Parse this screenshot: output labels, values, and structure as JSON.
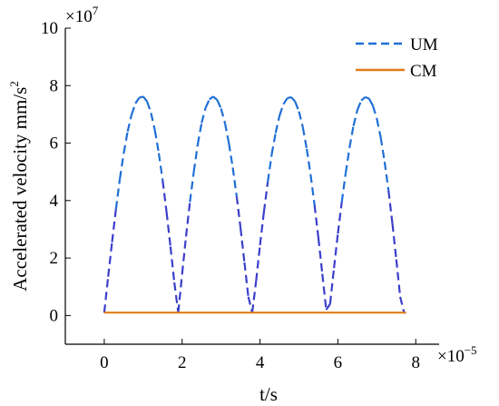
{
  "chart_data": {
    "type": "line",
    "xlabel": "t/s",
    "ylabel": "Accelerated velocity  mm/s",
    "ylabel_exponent": "2",
    "x_multiplier": {
      "base": "×10",
      "exponent": "−5"
    },
    "y_multiplier": {
      "base": "×10",
      "exponent": "7"
    },
    "xlim": [
      -1,
      8.6
    ],
    "ylim": [
      -1,
      10
    ],
    "xticks": [
      0,
      2,
      4,
      6,
      8
    ],
    "yticks": [
      0,
      2,
      4,
      6,
      8,
      10
    ],
    "grid": false,
    "legend_position": "top-right",
    "series": [
      {
        "name": "UM",
        "style": "dashed",
        "color": "#1f6fd6",
        "color_low": "#3b3fc9",
        "x": [
          0,
          0.1,
          0.2,
          0.3,
          0.4,
          0.5,
          0.6,
          0.7,
          0.8,
          0.9,
          1.0,
          1.1,
          1.2,
          1.3,
          1.4,
          1.5,
          1.6,
          1.7,
          1.8,
          1.9,
          2.0,
          2.1,
          2.2,
          2.3,
          2.4,
          2.5,
          2.6,
          2.7,
          2.8,
          2.9,
          3.0,
          3.1,
          3.2,
          3.3,
          3.4,
          3.5,
          3.6,
          3.7,
          3.8,
          3.9,
          4.0,
          4.1,
          4.2,
          4.3,
          4.4,
          4.5,
          4.6,
          4.7,
          4.8,
          4.9,
          5.0,
          5.1,
          5.2,
          5.3,
          5.4,
          5.5,
          5.6,
          5.7,
          5.8,
          5.9,
          6.0,
          6.1,
          6.2,
          6.3,
          6.4,
          6.5,
          6.6,
          6.7,
          6.8,
          6.9,
          7.0,
          7.1,
          7.2,
          7.3,
          7.4,
          7.5,
          7.6,
          7.7,
          7.75
        ],
        "y": [
          0.1,
          1.35,
          2.55,
          3.7,
          4.75,
          5.65,
          6.4,
          6.98,
          7.38,
          7.58,
          7.62,
          7.45,
          7.05,
          6.45,
          5.65,
          4.7,
          3.6,
          2.4,
          1.15,
          0.1,
          1.45,
          2.75,
          3.95,
          5.0,
          5.95,
          6.7,
          7.22,
          7.52,
          7.62,
          7.5,
          7.2,
          6.7,
          6.0,
          5.15,
          4.15,
          3.05,
          1.85,
          0.65,
          0.1,
          1.2,
          2.45,
          3.6,
          4.65,
          5.6,
          6.35,
          6.95,
          7.35,
          7.56,
          7.6,
          7.45,
          7.1,
          6.55,
          5.8,
          4.9,
          3.85,
          2.7,
          1.45,
          0.2,
          0.4,
          1.65,
          2.85,
          3.95,
          4.95,
          5.85,
          6.6,
          7.15,
          7.48,
          7.6,
          7.55,
          7.3,
          6.85,
          6.2,
          5.35,
          4.35,
          3.2,
          1.95,
          0.65,
          0.1,
          0.1
        ]
      },
      {
        "name": "CM",
        "style": "solid",
        "color": "#e07b1a",
        "x": [
          0,
          7.75
        ],
        "y": [
          0.1,
          0.1
        ]
      }
    ]
  }
}
